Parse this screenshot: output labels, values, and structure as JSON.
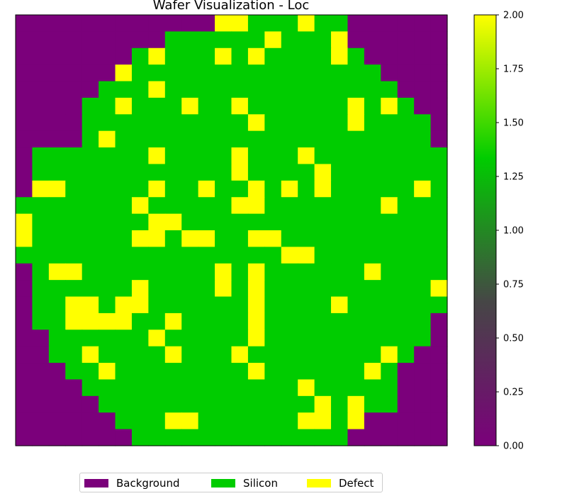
{
  "chart_data": {
    "type": "heatmap",
    "title": "Wafer Visualization - Loc",
    "rows": 26,
    "cols": 26,
    "value_colors": {
      "0": "#7b007b",
      "1": "#00cc00",
      "2": "#ffff00"
    },
    "grid": [
      "00000000000022111211000000",
      "00000000011111121112000000",
      "00000001211121211112100000",
      "00000021111111111111110000",
      "00000111211111111111111000",
      "00001121112112111111212100",
      "00001111111111211111211110",
      "00001211111111111111111110",
      "01111111211112111211111111",
      "01111111111112111121111111",
      "02211111211211212121111121",
      "11111112111112211111112111",
      "21111111221111111111111111",
      "21111112212211221111111111",
      "11111111111111112211111111",
      "01221111111121211111121111",
      "01111112111121211111111112",
      "01122122111111211112111111",
      "01122221121111211111111110",
      "00111111211111211111111110",
      "00112111121112111111112100",
      "00011211111111211111121000",
      "00001111111111111211111000",
      "00000111111111111121211000",
      "00000011122111111221200000",
      "00000001111111111111000000"
    ],
    "colorbar": {
      "ticks": [
        "0.00",
        "0.25",
        "0.50",
        "0.75",
        "1.00",
        "1.25",
        "1.50",
        "1.75",
        "2.00"
      ],
      "min": 0,
      "max": 2,
      "stops": [
        "#7b007b",
        "#464646",
        "#00cc00",
        "#ffff00"
      ]
    },
    "legend": {
      "placement": "bottom-center",
      "items": [
        {
          "label": "Background",
          "color": "#7b007b"
        },
        {
          "label": "Silicon",
          "color": "#00cc00"
        },
        {
          "label": "Defect",
          "color": "#ffff00"
        }
      ]
    }
  }
}
